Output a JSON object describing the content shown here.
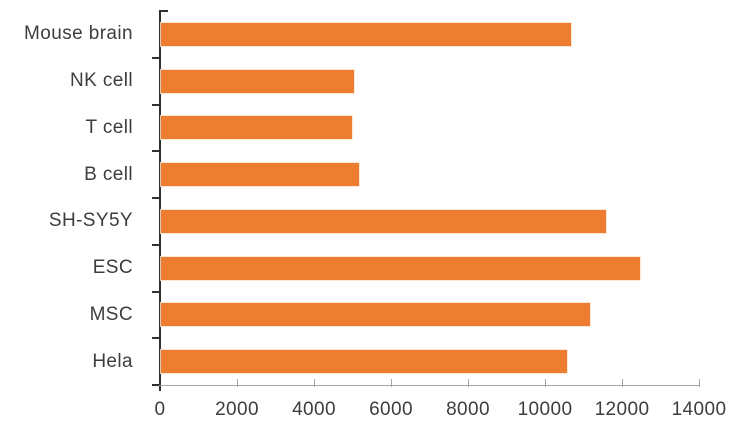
{
  "chart_data": {
    "type": "bar",
    "orientation": "horizontal",
    "title": "",
    "categories": [
      "Mouse brain",
      "NK cell",
      "T cell",
      "B cell",
      "SH-SY5Y",
      "ESC",
      "MSC",
      "Hela"
    ],
    "values": [
      10650,
      5000,
      4950,
      5150,
      11550,
      12450,
      11150,
      10550
    ],
    "xlabel": "",
    "ylabel": "",
    "xlim": [
      0,
      14000
    ],
    "x_ticks": [
      0,
      2000,
      4000,
      6000,
      8000,
      10000,
      12000,
      14000
    ],
    "x_tick_labels": [
      "0",
      "2000",
      "4000",
      "6000",
      "8000",
      "10000",
      "12000",
      "14000"
    ],
    "grid": false,
    "legend": "none",
    "bar_color": "#ED7D31",
    "value_axis_color": "#A6A6A6",
    "category_axis_color": "#303030",
    "text_color": "#3D3D3D",
    "background": "#FFFFFF"
  }
}
